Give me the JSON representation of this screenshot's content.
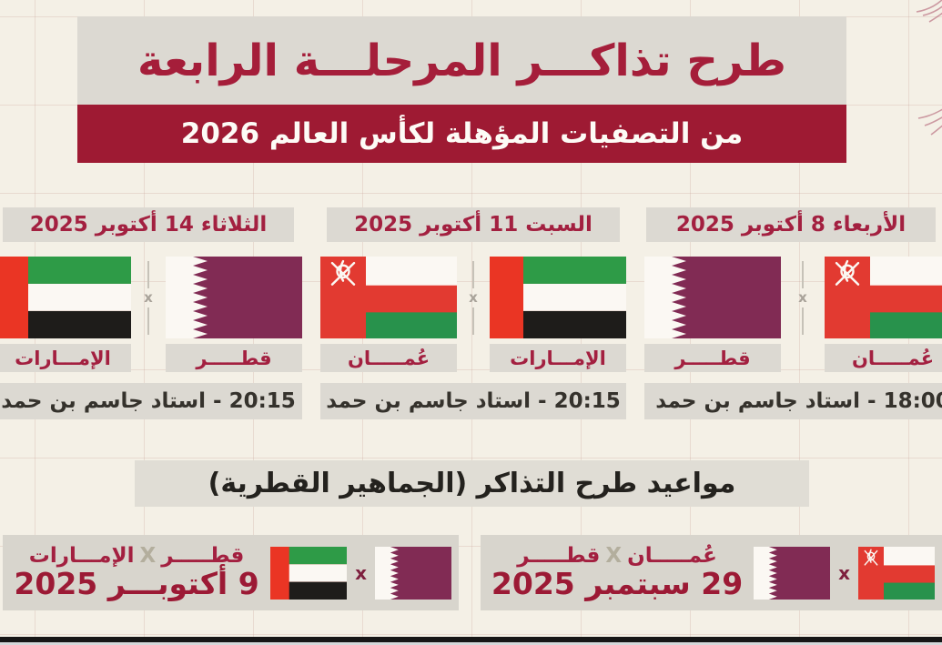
{
  "header": {
    "title": "طرح تذاكـــر المرحلـــة الرابعة",
    "subtitle": "من التصفيات المؤهلة لكأس العالم 2026"
  },
  "matches": [
    {
      "date": "الثلاثاء 14 أكتوبر 2025",
      "teams": [
        {
          "name": "الإمـــارات",
          "flag": "uae"
        },
        {
          "name": "قطـــــر",
          "flag": "qatar"
        }
      ],
      "vs": "x",
      "time_venue": "20:15 - استاد جاسم بن حمد"
    },
    {
      "date": "السبت 11 أكتوبر 2025",
      "teams": [
        {
          "name": "عُمـــــان",
          "flag": "oman"
        },
        {
          "name": "الإمـــارات",
          "flag": "uae"
        }
      ],
      "vs": "x",
      "time_venue": "20:15 - استاد جاسم بن حمد"
    },
    {
      "date": "الأربعاء 8 أكتوبر 2025",
      "teams": [
        {
          "name": "قطـــــر",
          "flag": "qatar"
        },
        {
          "name": "عُمـــــان",
          "flag": "oman"
        }
      ],
      "vs": "x",
      "time_venue": "18:00 - استاد جاسم بن حمد"
    }
  ],
  "tickets": {
    "section_title": "مواعيد طرح التذاكر (الجماهير القطرية)",
    "cards": [
      {
        "team_a": "قطـــــر",
        "x": "X",
        "team_b": "الإمـــارات",
        "date": "9 أكتوبـــر 2025",
        "vs": "x",
        "flags": [
          "uae",
          "qatar"
        ]
      },
      {
        "team_a": "عُمـــــان",
        "x": "X",
        "team_b": "قطـــــر",
        "date": "29 سبتمبر 2025",
        "vs": "x",
        "flags": [
          "qatar",
          "oman"
        ]
      }
    ]
  },
  "colors": {
    "background": "#f4f0e6",
    "panel_gray": "#dcd9d2",
    "band_maroon": "#9e1a33",
    "accent_maroon": "#a32040",
    "qatar_flag_maroon": "#812b54",
    "uae_red": "#ea3524",
    "uae_green": "#2e9b47",
    "uae_black": "#1e1c1a",
    "oman_red": "#e23a31",
    "oman_green": "#28924c"
  }
}
